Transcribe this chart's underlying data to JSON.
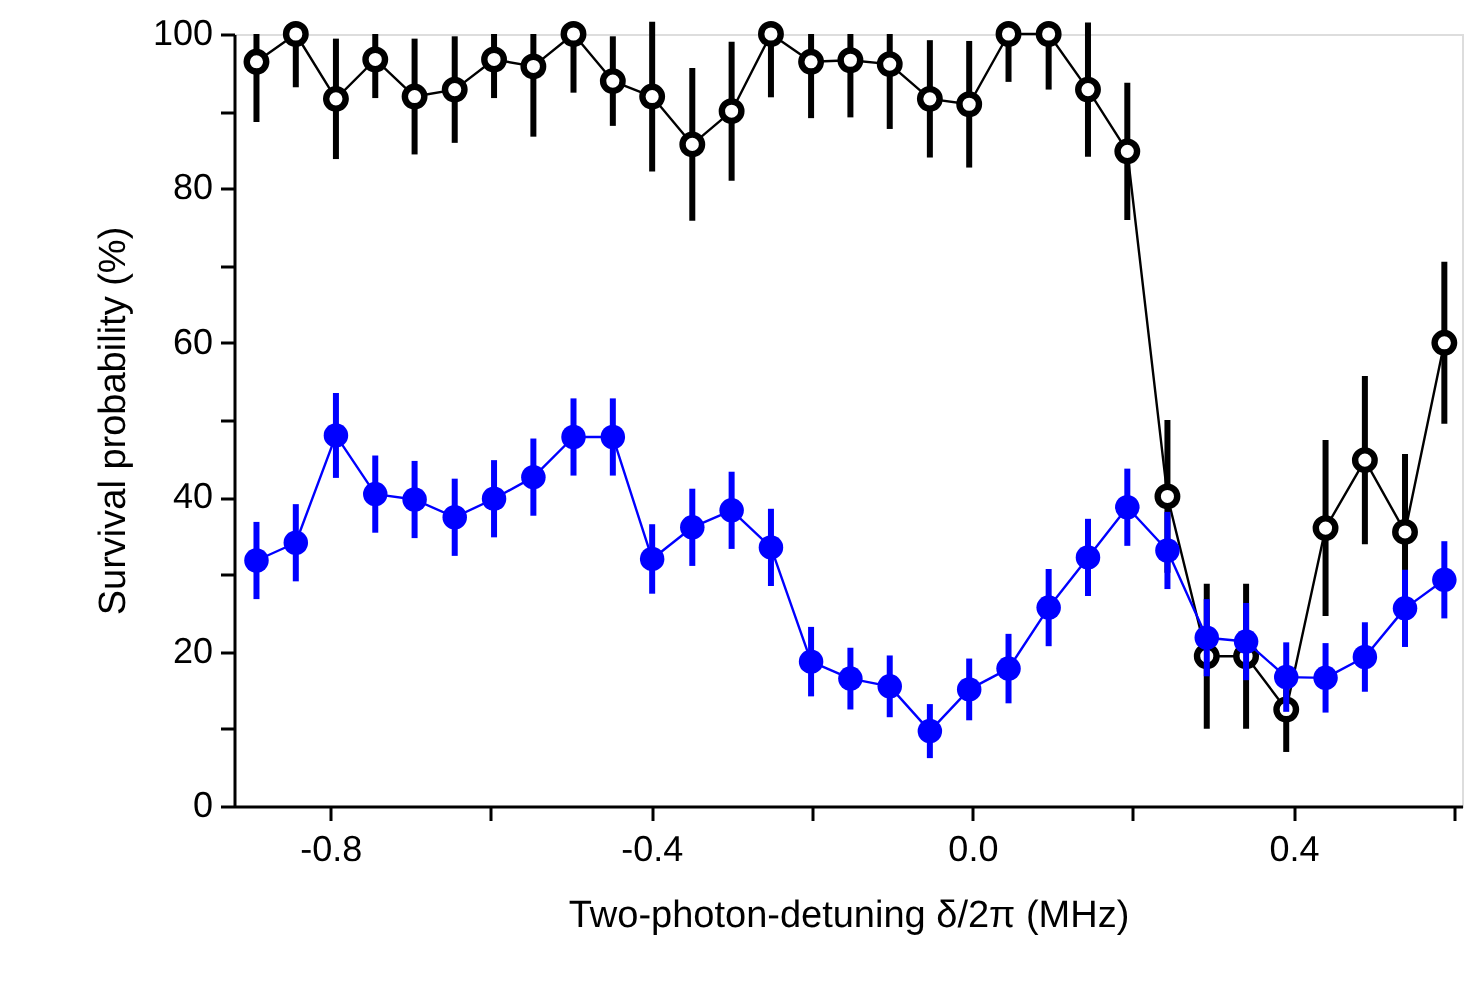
{
  "chart_data": {
    "type": "line",
    "xlabel": "Two-photon-detuning δ/2π (MHz)",
    "ylabel": "Survival probability (%)",
    "xlim": [
      -0.92,
      0.61
    ],
    "xticks": [
      {
        "value": -0.8,
        "label": "-0.8"
      },
      {
        "value": -0.6,
        "label": null
      },
      {
        "value": -0.4,
        "label": "-0.4"
      },
      {
        "value": -0.2,
        "label": null
      },
      {
        "value": 0,
        "label": "0.0"
      },
      {
        "value": 0.2,
        "label": null
      },
      {
        "value": 0.4,
        "label": "0.4"
      },
      {
        "value": 0.6,
        "label": null
      }
    ],
    "ylim": [
      0,
      100
    ],
    "yticks": [
      0,
      {
        "value": 10,
        "label": null
      },
      20,
      {
        "value": 30,
        "label": null
      },
      40,
      {
        "value": 50,
        "label": null
      },
      60,
      {
        "value": 70,
        "label": null
      },
      80,
      {
        "value": 90,
        "label": null
      },
      100
    ],
    "x": [
      -0.892,
      -0.843,
      -0.793,
      -0.744,
      -0.695,
      -0.645,
      -0.596,
      -0.547,
      -0.497,
      -0.448,
      -0.399,
      -0.349,
      -0.3,
      -0.251,
      -0.201,
      -0.152,
      -0.103,
      -0.053,
      -0.004,
      0.045,
      0.095,
      0.144,
      0.193,
      0.243,
      0.292,
      0.341,
      0.391,
      0.44,
      0.489,
      0.539,
      0.588
    ],
    "marker": "circle",
    "line_style": "solid",
    "grid": false,
    "series": [
      {
        "color": "#000000",
        "values": [
          96.4,
          100,
          91.6,
          96.7,
          91.9,
          92.8,
          96.7,
          95.8,
          100,
          93.9,
          91.9,
          85.7,
          90.0,
          100,
          96.4,
          96.6,
          96.1,
          91.6,
          90.9,
          100,
          100,
          92.8,
          84.8,
          40.1,
          19.4,
          19.4,
          12.5,
          36.0,
          44.8,
          35.5,
          60.0
        ],
        "errors": [
          [
            88.6,
            100
          ],
          [
            93.1,
            100
          ],
          7.8,
          [
            91.7,
            100
          ],
          7.5,
          6.9,
          [
            91.7,
            100
          ],
          [
            86.7,
            100
          ],
          [
            92.4,
            100
          ],
          5.8,
          9.7,
          9.9,
          9.0,
          [
            91.8,
            100
          ],
          [
            89.1,
            100
          ],
          [
            89.2,
            100
          ],
          [
            87.7,
            100
          ],
          7.6,
          8.2,
          [
            93.8,
            100
          ],
          [
            92.8,
            100
          ],
          8.7,
          8.9,
          9.9,
          9.4,
          9.4,
          5.5,
          11.4,
          10.9,
          10.1,
          10.5
        ]
      },
      {
        "color": "#0000ff",
        "values": [
          31.8,
          34.1,
          48.0,
          40.4,
          39.7,
          37.4,
          39.8,
          42.6,
          47.8,
          47.8,
          32.0,
          36.1,
          38.3,
          33.5,
          18.7,
          16.5,
          15.5,
          9.7,
          15.1,
          17.8,
          25.7,
          32.2,
          38.7,
          33.1,
          21.8,
          21.3,
          16.7,
          16.6,
          19.3,
          25.6,
          29.3
        ],
        "errors": [
          5,
          5,
          5.5,
          5,
          5,
          5,
          5,
          5,
          5,
          5,
          4.5,
          5,
          5,
          5,
          4.5,
          4,
          4,
          3.5,
          4,
          4.5,
          5,
          5,
          5,
          5,
          5,
          5,
          4.5,
          4.5,
          4.5,
          5,
          5
        ]
      }
    ]
  }
}
